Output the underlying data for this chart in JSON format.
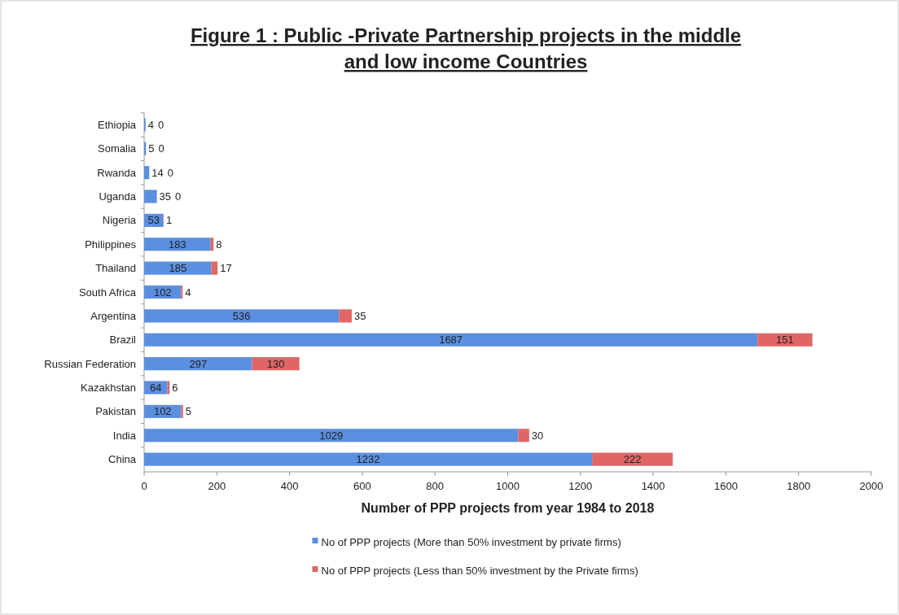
{
  "chart_data": {
    "type": "bar",
    "orientation": "horizontal",
    "stacked": true,
    "title": "Figure 1 : Public -Private Partnership projects in the middle and low income Countries",
    "xlabel": "Number of PPP projects from year 1984 to 2018",
    "categories": [
      "Ethiopia",
      "Somalia",
      "Rwanda",
      "Uganda",
      "Nigeria",
      "Philippines",
      "Thailand",
      "South Africa",
      "Argentina",
      "Brazil",
      "Russian Federation",
      "Kazakhstan",
      "Pakistan",
      "India",
      "China"
    ],
    "series": [
      {
        "name": "No of PPP projects (More than 50% investment by private firms)",
        "color": "#5b8fe0",
        "values": [
          4,
          5,
          14,
          35,
          53,
          183,
          185,
          102,
          536,
          1687,
          297,
          64,
          102,
          1029,
          1232
        ]
      },
      {
        "name": "No of PPP projects (Less than 50% investment by the Private firms)",
        "color": "#e06666",
        "values": [
          0,
          0,
          0,
          0,
          1,
          8,
          17,
          4,
          35,
          151,
          130,
          6,
          5,
          30,
          222
        ]
      }
    ],
    "xlim": [
      0,
      2000
    ],
    "xticks": [
      0,
      200,
      400,
      600,
      800,
      1000,
      1200,
      1400,
      1600,
      1800,
      2000
    ],
    "data_labels": true,
    "legend": "bottom",
    "grid": false
  }
}
